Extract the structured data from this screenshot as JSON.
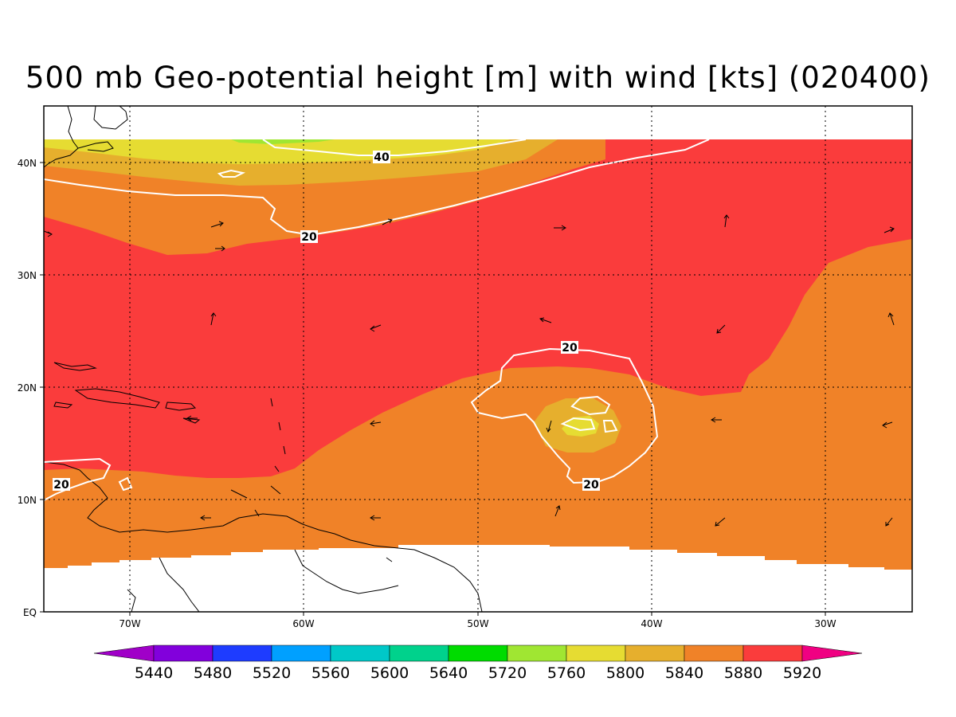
{
  "title": "500 mb Geo-potential height [m] with wind [kts] (020400)",
  "map": {
    "lat_labels": [
      "40N",
      "30N",
      "20N",
      "10N",
      "EQ"
    ],
    "lon_labels": [
      "70W",
      "60W",
      "50W",
      "40W",
      "30W"
    ],
    "contour_labels": [
      "40",
      "20",
      "20",
      "20",
      "20"
    ]
  },
  "colorbar": {
    "labels": [
      "5440",
      "5480",
      "5520",
      "5560",
      "5600",
      "5640",
      "5720",
      "5760",
      "5800",
      "5840",
      "5880",
      "5920"
    ],
    "colors": [
      "#a000c8",
      "#8200dc",
      "#1e3cff",
      "#00a0ff",
      "#00c8c8",
      "#00d28c",
      "#00dc00",
      "#a0e632",
      "#e6dc32",
      "#e6af2d",
      "#f08228",
      "#fa3c3c",
      "#f00082"
    ]
  },
  "colors": {
    "band_5760": "#a0e632",
    "band_5800": "#e6dc32",
    "band_5840": "#e6af2d",
    "band_5880": "#f08228",
    "band_5920": "#fa3c3c",
    "contour": "#ffffff",
    "coastline": "#000000"
  }
}
